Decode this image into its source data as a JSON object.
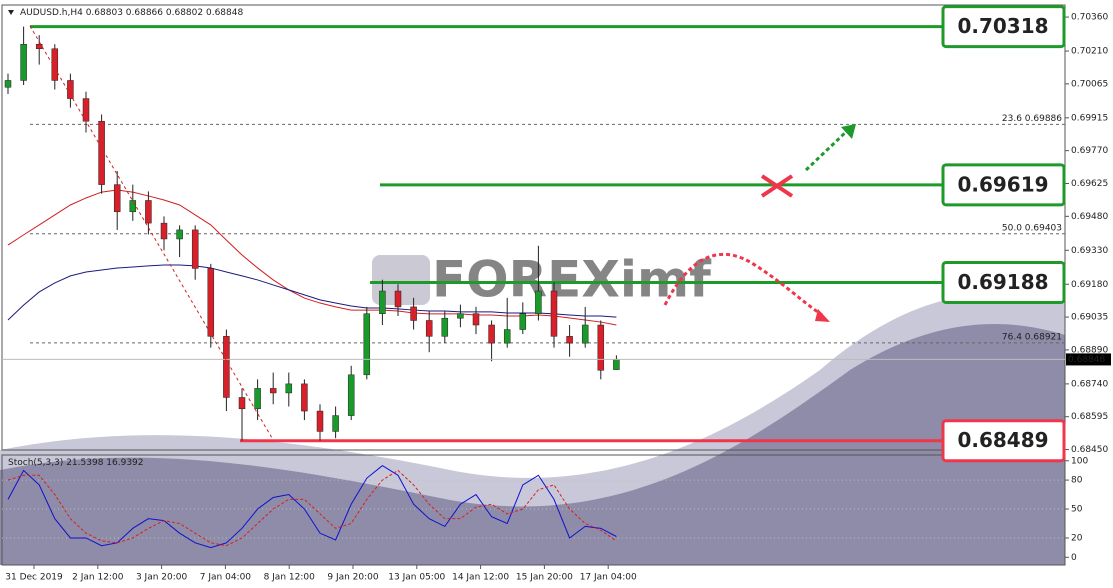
{
  "chart_data": {
    "type": "candlestick",
    "symbol": "AUDUSD.h,H4",
    "up_color": "#1a9a2a",
    "down_color": "#d8202a",
    "open": [
      0.7005,
      0.7008,
      0.7024,
      0.7022,
      0.7008,
      0.7,
      0.699,
      0.6962,
      0.695,
      0.6955,
      0.6945,
      0.6938,
      0.6942,
      0.6925,
      0.6895,
      0.6868,
      0.6863,
      0.6872,
      0.687,
      0.6874,
      0.6862,
      0.6853,
      0.686,
      0.6878,
      0.6905,
      0.6915,
      0.6908,
      0.6902,
      0.6895,
      0.6903,
      0.6905,
      0.69,
      0.6892,
      0.6898,
      0.6905,
      0.6915,
      0.6895,
      0.6892,
      0.69,
      0.68803
    ],
    "high": [
      0.7011,
      0.70318,
      0.7028,
      0.7024,
      0.7011,
      0.7003,
      0.6993,
      0.6968,
      0.6962,
      0.6959,
      0.6948,
      0.6944,
      0.6944,
      0.6927,
      0.6898,
      0.6872,
      0.6876,
      0.6879,
      0.6879,
      0.6876,
      0.6865,
      0.6864,
      0.6882,
      0.6908,
      0.692,
      0.6918,
      0.6912,
      0.6906,
      0.6906,
      0.6909,
      0.6908,
      0.6902,
      0.6912,
      0.691,
      0.6935,
      0.6919,
      0.69,
      0.6908,
      0.6902,
      0.68866
    ],
    "low": [
      0.7002,
      0.7006,
      0.7015,
      0.7004,
      0.6996,
      0.6985,
      0.6958,
      0.6942,
      0.6946,
      0.694,
      0.6933,
      0.693,
      0.692,
      0.689,
      0.6862,
      0.68489,
      0.6858,
      0.6865,
      0.6864,
      0.6858,
      0.68489,
      0.685,
      0.6858,
      0.6876,
      0.69,
      0.6904,
      0.6898,
      0.6888,
      0.6892,
      0.6899,
      0.6896,
      0.6884,
      0.689,
      0.6896,
      0.6902,
      0.689,
      0.6886,
      0.689,
      0.6876,
      0.68802
    ],
    "close": [
      0.7008,
      0.7024,
      0.7022,
      0.7008,
      0.7,
      0.699,
      0.6962,
      0.695,
      0.6955,
      0.6945,
      0.6938,
      0.6942,
      0.6925,
      0.6895,
      0.6868,
      0.6863,
      0.6872,
      0.687,
      0.6874,
      0.6862,
      0.6853,
      0.686,
      0.6878,
      0.6905,
      0.6915,
      0.6908,
      0.6902,
      0.6895,
      0.6903,
      0.6905,
      0.69,
      0.6892,
      0.6898,
      0.6905,
      0.6915,
      0.6895,
      0.6892,
      0.69,
      0.688,
      0.68848
    ],
    "moving_averages": [
      {
        "color": "#d02020",
        "values": [
          0.69353,
          0.69398,
          0.69442,
          0.69486,
          0.6953,
          0.69561,
          0.69587,
          0.69596,
          0.69587,
          0.6957,
          0.69552,
          0.6953,
          0.69486,
          0.69442,
          0.69375,
          0.69309,
          0.69252,
          0.69199,
          0.69155,
          0.69119,
          0.69097,
          0.6908,
          0.69066,
          0.69066,
          0.69066,
          0.69062,
          0.69053,
          0.69049,
          0.69049,
          0.69049,
          0.69044,
          0.69044,
          0.6904,
          0.6904,
          0.69044,
          0.6904,
          0.69031,
          0.69022,
          0.69013,
          0.69
        ]
      },
      {
        "color": "#1a1a80",
        "values": [
          0.69022,
          0.69088,
          0.69146,
          0.69186,
          0.69217,
          0.69234,
          0.69243,
          0.69252,
          0.69256,
          0.69261,
          0.69265,
          0.69265,
          0.69261,
          0.69252,
          0.69234,
          0.69217,
          0.69199,
          0.69177,
          0.69155,
          0.69133,
          0.69111,
          0.69097,
          0.69084,
          0.69075,
          0.69075,
          0.69071,
          0.69066,
          0.69062,
          0.69062,
          0.69058,
          0.69058,
          0.69058,
          0.69053,
          0.69053,
          0.69053,
          0.69049,
          0.69044,
          0.6904,
          0.6904,
          0.69035
        ]
      }
    ],
    "ylim": [
      0.68448,
      0.704
    ],
    "yticks": [
      {
        "value": 0.7036,
        "label": "0.70360"
      },
      {
        "value": 0.7021,
        "label": "0.70210"
      },
      0.70065,
      0.69915,
      {
        "value": 0.6977,
        "label": "0.69770"
      },
      0.69625,
      {
        "value": 0.6948,
        "label": "0.69480"
      },
      {
        "value": 0.6933,
        "label": "0.69330"
      },
      {
        "value": 0.6918,
        "label": "0.69180"
      },
      0.69035,
      {
        "value": 0.6889,
        "label": "0.68890"
      },
      {
        "value": 0.6874,
        "label": "0.68740"
      },
      0.68595,
      {
        "value": 0.6845,
        "label": "0.68450"
      }
    ],
    "x_labels": [
      "31 Dec 2019",
      "2 Jan 12:00",
      "3 Jan 20:00",
      "7 Jan 04:00",
      "8 Jan 12:00",
      "9 Jan 20:00",
      "13 Jan 05:00",
      "14 Jan 12:00",
      "15 Jan 20:00",
      "17 Jan 04:00"
    ],
    "levels": [
      {
        "value": 0.70318,
        "color": "#1e9a2a"
      },
      {
        "value": 0.69619,
        "color": "#1e9a2a"
      },
      {
        "value": 0.69188,
        "color": "#1e9a2a"
      },
      {
        "value": 0.68489,
        "color": "#f0364a"
      }
    ],
    "fib_levels": [
      {
        "value": 0.69886,
        "label": "23.6 0.69886"
      },
      {
        "value": 0.69403,
        "label": "50.0 0.69403"
      },
      {
        "value": 0.68921,
        "label": "76.4 0.68921"
      }
    ],
    "watermark": "FOREXimf",
    "stochastic": {
      "name": "Stoch(5,3,3)",
      "ylim": [
        -8,
        106
      ],
      "yticks": [
        100,
        80,
        50,
        20,
        0
      ],
      "series": [
        {
          "color": "#1010d0",
          "values": [
            60,
            90,
            75,
            40,
            20,
            20,
            12,
            15,
            30,
            40,
            38,
            25,
            15,
            10,
            15,
            30,
            50,
            62,
            65,
            50,
            25,
            18,
            55,
            82,
            95,
            85,
            55,
            40,
            32,
            55,
            65,
            42,
            35,
            75,
            85,
            60,
            20,
            32,
            30,
            21.5398
          ]
        },
        {
          "color": "#d82020",
          "values": [
            80,
            85,
            85,
            65,
            40,
            25,
            17,
            15,
            20,
            30,
            38,
            35,
            25,
            15,
            12,
            20,
            35,
            50,
            60,
            60,
            45,
            30,
            35,
            60,
            80,
            90,
            75,
            55,
            40,
            40,
            52,
            55,
            45,
            50,
            70,
            75,
            50,
            35,
            28,
            16.9392
          ]
        }
      ]
    }
  }
}
